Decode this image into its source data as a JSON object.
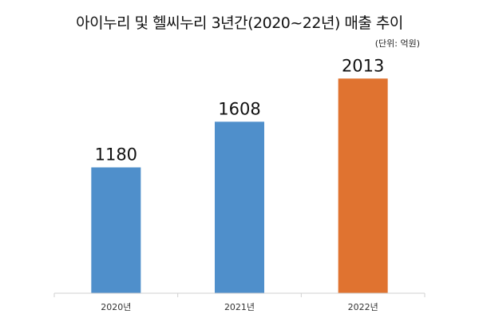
{
  "chart_data": {
    "type": "bar",
    "title": "아이누리 및 헬씨누리 3년간(2020~22년) 매출 추이",
    "unit_note": "(단위: 억원)",
    "categories": [
      "2020년",
      "2021년",
      "2022년"
    ],
    "values": [
      1180,
      1608,
      2013
    ],
    "data_labels": [
      "1180",
      "1608",
      "2013"
    ],
    "bar_colors": [
      "#4f8fcb",
      "#4f8fcb",
      "#e07330"
    ],
    "ylim": [
      0,
      2150
    ],
    "grid": false,
    "legend": "none",
    "xlabel": "",
    "ylabel": ""
  }
}
